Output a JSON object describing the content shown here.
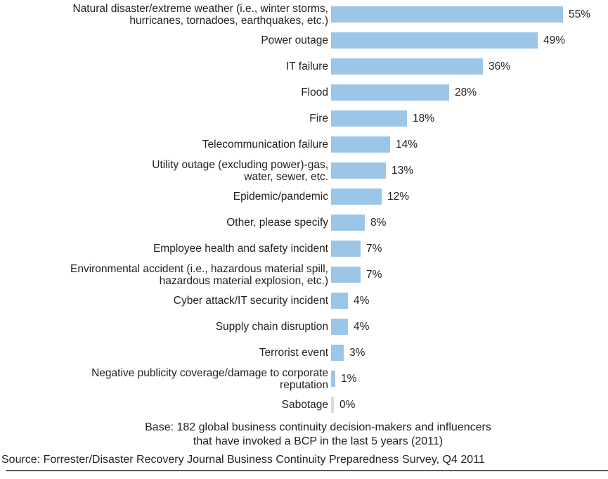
{
  "chart_data": {
    "type": "bar",
    "orientation": "horizontal",
    "bar_color": "#9CC6E8",
    "zero_bar_color": "#DBDBDB",
    "unit": "%",
    "xlim": [
      0,
      60
    ],
    "grid": false,
    "legend": false,
    "categories": [
      "Natural disaster/extreme weather (i.e., winter storms,\nhurricanes, tornadoes, earthquakes, etc.)",
      "Power outage",
      "IT failure",
      "Flood",
      "Fire",
      "Telecommunication failure",
      "Utility outage (excluding power)-gas,\nwater, sewer, etc.",
      "Epidemic/pandemic",
      "Other, please specify",
      "Employee health and safety incident",
      "Environmental accident (i.e., hazardous material spill,\nhazardous material explosion, etc.)",
      "Cyber attack/IT security incident",
      "Supply chain disruption",
      "Terrorist event",
      "Negative publicity coverage/damage to corporate\nreputation",
      "Sabotage"
    ],
    "values": [
      55,
      49,
      36,
      28,
      18,
      14,
      13,
      12,
      8,
      7,
      7,
      4,
      4,
      3,
      1,
      0
    ],
    "value_labels": [
      "55%",
      "49%",
      "36%",
      "28%",
      "18%",
      "14%",
      "13%",
      "12%",
      "8%",
      "7%",
      "7%",
      "4%",
      "4%",
      "3%",
      "1%",
      "0%"
    ],
    "base_note": "Base: 182 global business continuity decision-makers and influencers\nthat have invoked a BCP in the last 5 years (2011)",
    "source": "Source: Forrester/Disaster Recovery Journal Business Continuity Preparedness Survey, Q4 2011"
  }
}
